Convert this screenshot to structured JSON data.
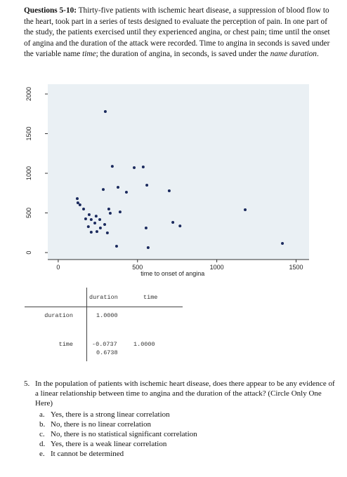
{
  "intro": {
    "lead": "Questions 5-10:",
    "runs": [
      "Thirty-five patients with ischemic heart disease, a suppression of blood flow to the heart, took part in a series of tests designed to evaluate the perception of pain. In one part of the study, the patients exercised until they experienced angina, or chest pain; time until the onset of angina and the duration of the attack were recorded. Time to angina in seconds is saved under the variable name ",
      "time",
      "; the duration of angina, in seconds, is saved under the ",
      "name duration",
      "."
    ]
  },
  "chart_data": {
    "type": "scatter",
    "x_label": "time to onset of angina",
    "color": "#1c2b5e",
    "xlim": [
      -66,
      1582
    ],
    "ylim": [
      -88,
      2124
    ],
    "xticks": [
      0,
      500,
      1000,
      1500
    ],
    "yticks": [
      0,
      500,
      1000,
      1500,
      2000
    ],
    "x": [
      297,
      341,
      479,
      536,
      559,
      377,
      284,
      430,
      700,
      120,
      137,
      160,
      1179,
      319,
      195,
      239,
      262,
      390,
      293,
      231,
      190,
      208,
      244,
      310,
      723,
      768,
      554,
      368,
      567,
      1414,
      173,
      124,
      208,
      266,
      328
    ],
    "values": [
      1779,
      1088,
      1071,
      1080,
      850,
      823,
      796,
      761,
      779,
      681,
      602,
      549,
      540,
      549,
      478,
      460,
      416,
      513,
      354,
      372,
      327,
      257,
      265,
      248,
      381,
      336,
      310,
      80,
      62,
      115,
      425,
      628,
      416,
      310,
      496
    ]
  },
  "table": {
    "header": [
      "duration",
      "time"
    ],
    "rows": [
      {
        "label": "duration",
        "cells": [
          "1.0000"
        ]
      },
      {
        "label": "time",
        "cells": [
          "-0.0737",
          "1.0000"
        ],
        "pvalue": "0.6738"
      }
    ]
  },
  "question": {
    "number": "5.",
    "text": "In the population of patients with ischemic heart disease, does there appear to be any evidence of a linear relationship between time to angina and the duration of the attack? (Circle Only One Here)",
    "options": [
      {
        "letter": "a.",
        "text": "Yes, there is a strong linear correlation"
      },
      {
        "letter": "b.",
        "text": "No, there is no linear correlation"
      },
      {
        "letter": "c.",
        "text": "No, there is no statistical significant correlation"
      },
      {
        "letter": "d.",
        "text": "Yes, there is a weak linear correlation"
      },
      {
        "letter": "e.",
        "text": "It cannot be determined"
      }
    ]
  }
}
